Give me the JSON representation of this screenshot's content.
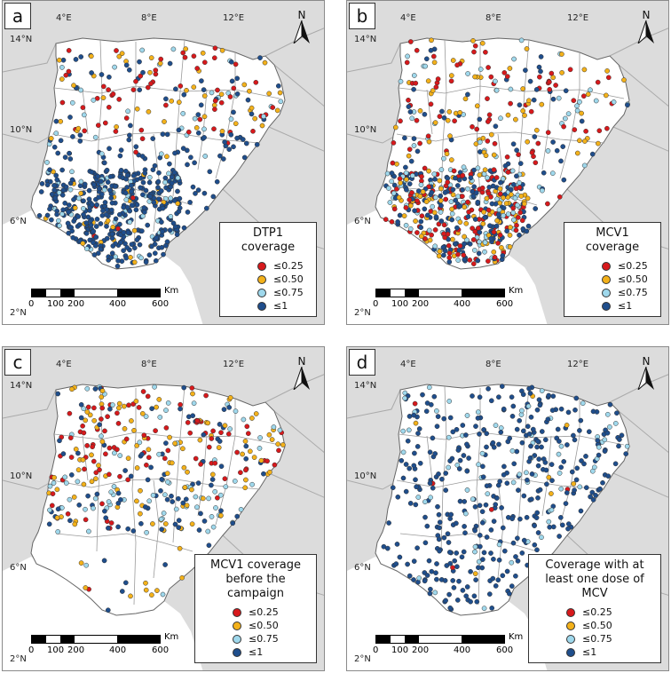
{
  "colors": {
    "c1": "#d7191c",
    "c2": "#f3b11a",
    "c3": "#9fd8ec",
    "c4": "#1f4e8c",
    "land": "#ffffff",
    "bg": "#dcdcdc"
  },
  "north_label": "N",
  "scale": {
    "labels": [
      "0",
      "100",
      "200",
      "400",
      "600"
    ],
    "unit": "Km"
  },
  "lon_ticks": [
    "4°E",
    "8°E",
    "12°E"
  ],
  "lat_ticks": [
    "14°N",
    "10°N",
    "6°N",
    "2°N"
  ],
  "legend_items": [
    "≤0.25",
    "≤0.50",
    "≤0.75",
    "≤1"
  ],
  "panels": [
    {
      "letter": "a",
      "title1": "DTP1",
      "title2": "coverage"
    },
    {
      "letter": "b",
      "title1": "MCV1",
      "title2": "coverage"
    },
    {
      "letter": "c",
      "title1": "MCV1 coverage",
      "title2": "before the campaign"
    },
    {
      "letter": "d",
      "title1": "Coverage with at",
      "title2": "least one dose of MCV"
    }
  ]
}
